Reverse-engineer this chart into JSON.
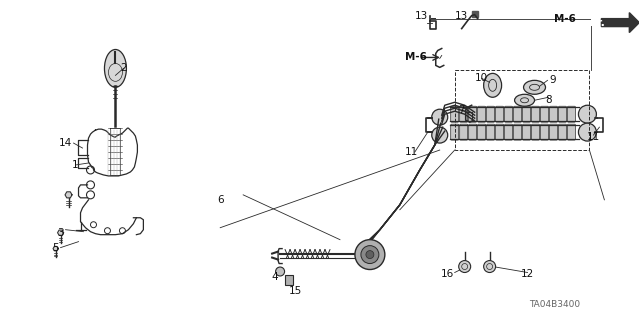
{
  "background_color": "#ffffff",
  "line_color": "#2a2a2a",
  "figsize": [
    6.4,
    3.19
  ],
  "dpi": 100,
  "diagram_code": "TA04B3400"
}
